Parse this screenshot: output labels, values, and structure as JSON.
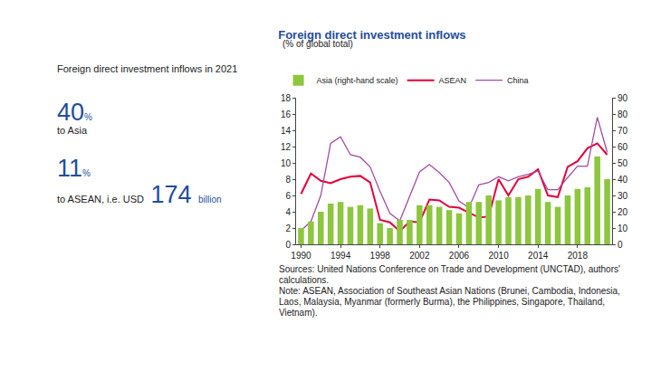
{
  "side_panel": {
    "heading": "Foreign direct investment inflows in 2021",
    "highlights": [
      {
        "value": "40",
        "unit": "%",
        "text": "to Asia"
      },
      {
        "value": "11",
        "unit": "%",
        "text": "to ASEAN, i.e. USD",
        "amount": "174",
        "amount_unit": "billion"
      }
    ]
  },
  "chart_data": {
    "type": "bar_line",
    "title": "Foreign direct investment inflows",
    "subtitle": "(% of global total)",
    "x": [
      1990,
      1991,
      1992,
      1993,
      1994,
      1995,
      1996,
      1997,
      1998,
      1999,
      2000,
      2001,
      2002,
      2003,
      2004,
      2005,
      2006,
      2007,
      2008,
      2009,
      2010,
      2011,
      2012,
      2013,
      2014,
      2015,
      2016,
      2017,
      2018,
      2019,
      2020,
      2021
    ],
    "series": [
      {
        "name": "Asia (right-hand scale)",
        "type": "bar",
        "axis": "y2",
        "color": "#8dc63f",
        "values": [
          10,
          14,
          20,
          25,
          26,
          23,
          24,
          22,
          13,
          10,
          15,
          15,
          24,
          24,
          23,
          21,
          19,
          26,
          26,
          30,
          27,
          29,
          29,
          30,
          34,
          26,
          23,
          30,
          34,
          35,
          54,
          40
        ]
      },
      {
        "name": "ASEAN",
        "type": "line",
        "color": "#e4003b",
        "values": [
          6.2,
          8.7,
          7.8,
          7.5,
          8.0,
          8.3,
          8.4,
          7.6,
          3.0,
          2.7,
          1.6,
          2.8,
          2.7,
          5.5,
          5.4,
          4.6,
          4.5,
          3.9,
          3.3,
          3.4,
          8.0,
          6.0,
          8.0,
          8.3,
          9.2,
          6.0,
          5.8,
          9.5,
          10.2,
          11.8,
          12.4,
          11.0
        ]
      },
      {
        "name": "China",
        "type": "line",
        "color": "#a24ea0",
        "values": [
          1.7,
          2.8,
          6.0,
          12.4,
          13.2,
          11.0,
          10.7,
          9.5,
          6.5,
          3.8,
          2.9,
          6.0,
          8.9,
          9.8,
          8.8,
          7.6,
          5.3,
          4.5,
          7.3,
          7.6,
          8.3,
          7.8,
          8.3,
          8.6,
          9.0,
          6.7,
          6.7,
          8.2,
          9.6,
          9.6,
          15.6,
          11.3
        ]
      }
    ],
    "xlim": [
      1989.5,
      2021.5
    ],
    "xticks": [
      1990,
      1994,
      1998,
      2002,
      2006,
      2010,
      2014,
      2018
    ],
    "ylim": [
      0,
      18
    ],
    "yticks": [
      0,
      2,
      4,
      6,
      8,
      10,
      12,
      14,
      16,
      18
    ],
    "y2lim": [
      0,
      90
    ],
    "y2ticks": [
      0,
      10,
      20,
      30,
      40,
      50,
      60,
      70,
      80,
      90
    ],
    "grid": false,
    "legend": "top-left"
  },
  "source": {
    "lines": [
      "Sources: United Nations Conference on Trade and Development (UNCTAD), authors' calculations.",
      "Note: ASEAN, Association of Southeast Asian Nations (Brunei, Cambodia, Indonesia, Laos, Malaysia, Myanmar (formerly Burma), the Philippines, Singapore, Thailand, Vietnam)."
    ]
  }
}
